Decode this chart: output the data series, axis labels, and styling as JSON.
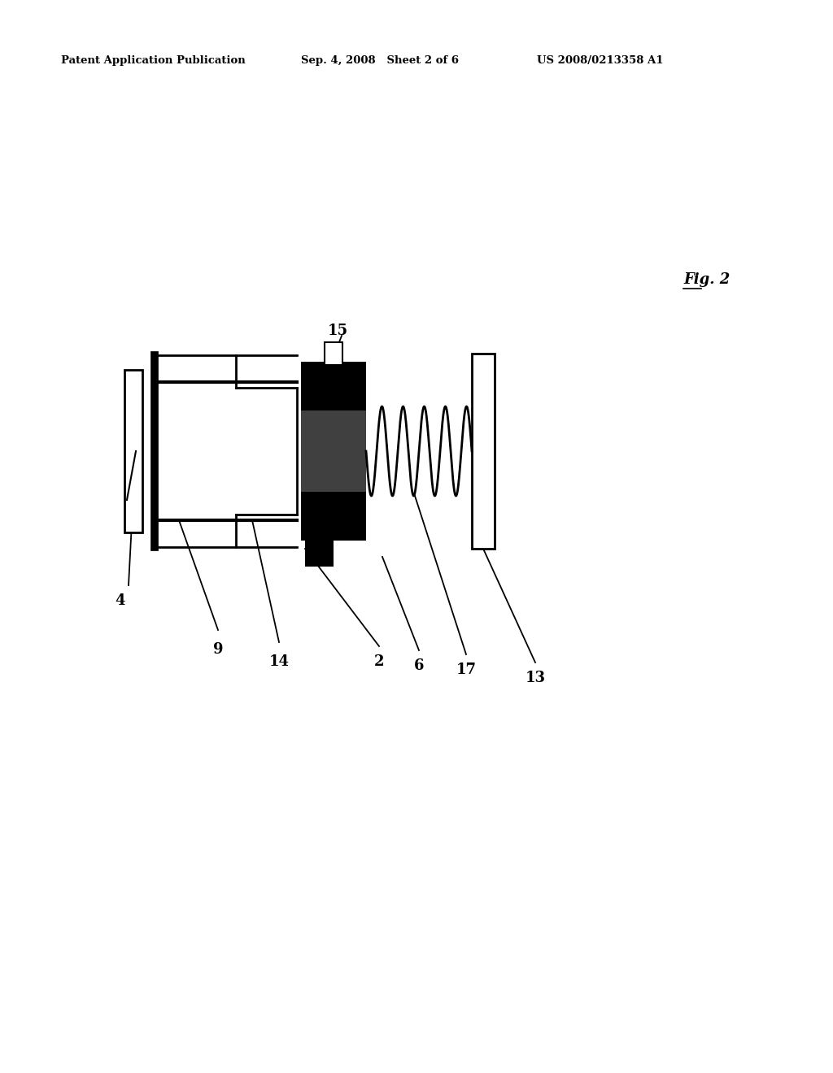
{
  "bg_color": "#ffffff",
  "header_left": "Patent Application Publication",
  "header_mid": "Sep. 4, 2008   Sheet 2 of 6",
  "header_right": "US 2008/0213358 A1",
  "fig_label": "Fig. 2"
}
